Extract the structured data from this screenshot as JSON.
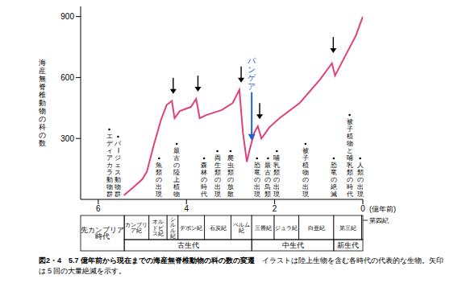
{
  "chart_data": {
    "type": "line",
    "figure_number": "図2・4",
    "title": "5.7 億年前から現在までの海産無脊椎動物の科の数の変遷",
    "subtitle": "イラストは陸上生物を含む各時代の代表的な生物。矢印は５回の大量絶滅を示す。",
    "x_label": "(億年前)",
    "y_label": "海産無脊椎動物の科の数",
    "x": [
      5.42,
      5.2,
      5.0,
      4.9,
      4.75,
      4.58,
      4.45,
      4.33,
      4.27,
      4.15,
      3.9,
      3.78,
      3.7,
      3.55,
      3.2,
      2.95,
      2.8,
      2.72,
      2.63,
      2.56,
      2.46,
      2.38,
      2.3,
      2.12,
      1.89,
      1.43,
      0.97,
      0.7,
      0.63,
      0.39,
      0.16,
      0
    ],
    "values": [
      20,
      60,
      100,
      135,
      260,
      390,
      465,
      485,
      400,
      435,
      455,
      495,
      400,
      415,
      440,
      475,
      540,
      330,
      185,
      250,
      330,
      360,
      300,
      355,
      400,
      475,
      590,
      670,
      610,
      710,
      805,
      900
    ],
    "color": "#e0407b",
    "xlim": [
      6.4,
      0
    ],
    "xticks": [
      6,
      4,
      2,
      0
    ],
    "ylim": [
      0,
      950
    ],
    "yticks": [
      300,
      600,
      900
    ],
    "grid": false,
    "extinctions": [
      {
        "x": 4.3,
        "y": 520
      },
      {
        "x": 3.74,
        "y": 530
      },
      {
        "x": 2.76,
        "y": 575
      },
      {
        "x": 2.34,
        "y": 395
      },
      {
        "x": 0.67,
        "y": 720
      }
    ],
    "events": [
      {
        "x": 5.75,
        "label": "エディアカラ動物群"
      },
      {
        "x": 5.55,
        "label": "バージェス動物群"
      },
      {
        "x": 4.62,
        "label": "魚類の出現"
      },
      {
        "x": 4.22,
        "label": "最古の陸上植物"
      },
      {
        "x": 3.6,
        "label": "森林の時代"
      },
      {
        "x": 3.3,
        "label": "両生類の出現"
      },
      {
        "x": 3.0,
        "label": "爬虫類の放散"
      },
      {
        "x": 2.4,
        "label": "恐竜の出現"
      },
      {
        "x": 2.15,
        "label": "最古の鳥類"
      },
      {
        "x": 1.95,
        "label": "哺乳類の出現"
      },
      {
        "x": 1.3,
        "label": "被子植物の出現"
      },
      {
        "x": 0.66,
        "label": "恐竜の絶滅"
      },
      {
        "x": 0.3,
        "label": "被子植物と哺乳類の時代"
      },
      {
        "x": 0.06,
        "label": "人類の出現"
      }
    ],
    "annotation": {
      "label": "パンゲア",
      "x": 2.52,
      "y": 290,
      "color": "#1f5fd8"
    },
    "periods": [
      {
        "label": "カンブリア紀",
        "start": 5.41,
        "end": 4.85
      },
      {
        "label": "オルドビス紀",
        "start": 4.85,
        "end": 4.44
      },
      {
        "label": "シルル紀",
        "start": 4.44,
        "end": 4.19
      },
      {
        "label": "デボン紀",
        "start": 4.19,
        "end": 3.59
      },
      {
        "label": "石炭紀",
        "start": 3.59,
        "end": 2.99
      },
      {
        "label": "ペルム紀",
        "start": 2.99,
        "end": 2.52
      },
      {
        "label": "三畳紀",
        "start": 2.52,
        "end": 2.01
      },
      {
        "label": "ジュラ紀",
        "start": 2.01,
        "end": 1.45
      },
      {
        "label": "白亜紀",
        "start": 1.45,
        "end": 0.66
      },
      {
        "label": "第三紀",
        "start": 0.66,
        "end": 0.026
      },
      {
        "label": "第四紀",
        "start": 0.026,
        "end": 0
      }
    ],
    "eras": [
      {
        "label": "先カンブリア時代",
        "start": 6.4,
        "end": 5.41
      },
      {
        "label": "古生代",
        "start": 5.41,
        "end": 2.52
      },
      {
        "label": "中生代",
        "start": 2.52,
        "end": 0.66
      },
      {
        "label": "新生代",
        "start": 0.66,
        "end": 0
      }
    ]
  }
}
